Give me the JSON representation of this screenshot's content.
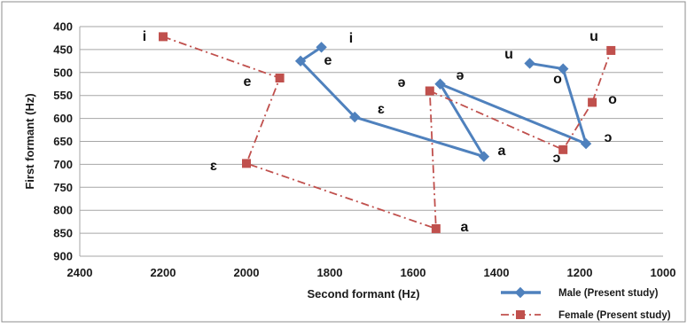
{
  "chart_data": {
    "type": "line",
    "xlabel": "Second formant (Hz)",
    "ylabel": "First formant (Hz)",
    "xlim": [
      2400,
      1000
    ],
    "ylim": [
      900,
      400
    ],
    "x_reversed": true,
    "y_reversed": true,
    "x_ticks": [
      2400,
      2200,
      2000,
      1800,
      1600,
      1400,
      1200,
      1000
    ],
    "y_ticks": [
      400,
      450,
      500,
      550,
      600,
      650,
      700,
      750,
      800,
      850,
      900
    ],
    "grid": "horizontal",
    "legend_position": "bottom-right",
    "series": [
      {
        "name": "Male (Present study)",
        "color": "#4f81bd",
        "marker": "diamond",
        "line_style": "solid",
        "segments": [
          [
            {
              "label": "i",
              "x": 1820,
              "y": 445
            },
            {
              "label": "e",
              "x": 1870,
              "y": 475
            },
            {
              "label": "ɛ",
              "x": 1740,
              "y": 597
            },
            {
              "label": "a",
              "x": 1430,
              "y": 683
            },
            {
              "label": "ə",
              "x": 1535,
              "y": 525
            },
            {
              "label": "ɔ",
              "x": 1185,
              "y": 655
            },
            {
              "label": "o",
              "x": 1240,
              "y": 492
            },
            {
              "label": "u",
              "x": 1320,
              "y": 480
            }
          ]
        ]
      },
      {
        "name": "Female (Present study)",
        "color": "#c0504d",
        "marker": "square",
        "line_style": "dash-dot",
        "segments": [
          [
            {
              "label": "i",
              "x": 2200,
              "y": 422
            },
            {
              "label": "e",
              "x": 1920,
              "y": 512
            },
            {
              "label": "ɛ",
              "x": 2000,
              "y": 698
            },
            {
              "label": "a",
              "x": 1545,
              "y": 840
            },
            {
              "label": "ə",
              "x": 1560,
              "y": 540
            }
          ],
          [
            {
              "label": "ə",
              "x": 1560,
              "y": 540
            },
            {
              "label": "ɔ",
              "x": 1240,
              "y": 668
            },
            {
              "label": "o",
              "x": 1170,
              "y": 565
            },
            {
              "label": "u",
              "x": 1125,
              "y": 452
            }
          ]
        ]
      }
    ],
    "point_labels": [
      "i",
      "i",
      "e",
      "e",
      "ɛ",
      "ɛ",
      "a",
      "a",
      "ə",
      "ə",
      "ɔ",
      "ɔ",
      "o",
      "o",
      "u",
      "u"
    ]
  }
}
